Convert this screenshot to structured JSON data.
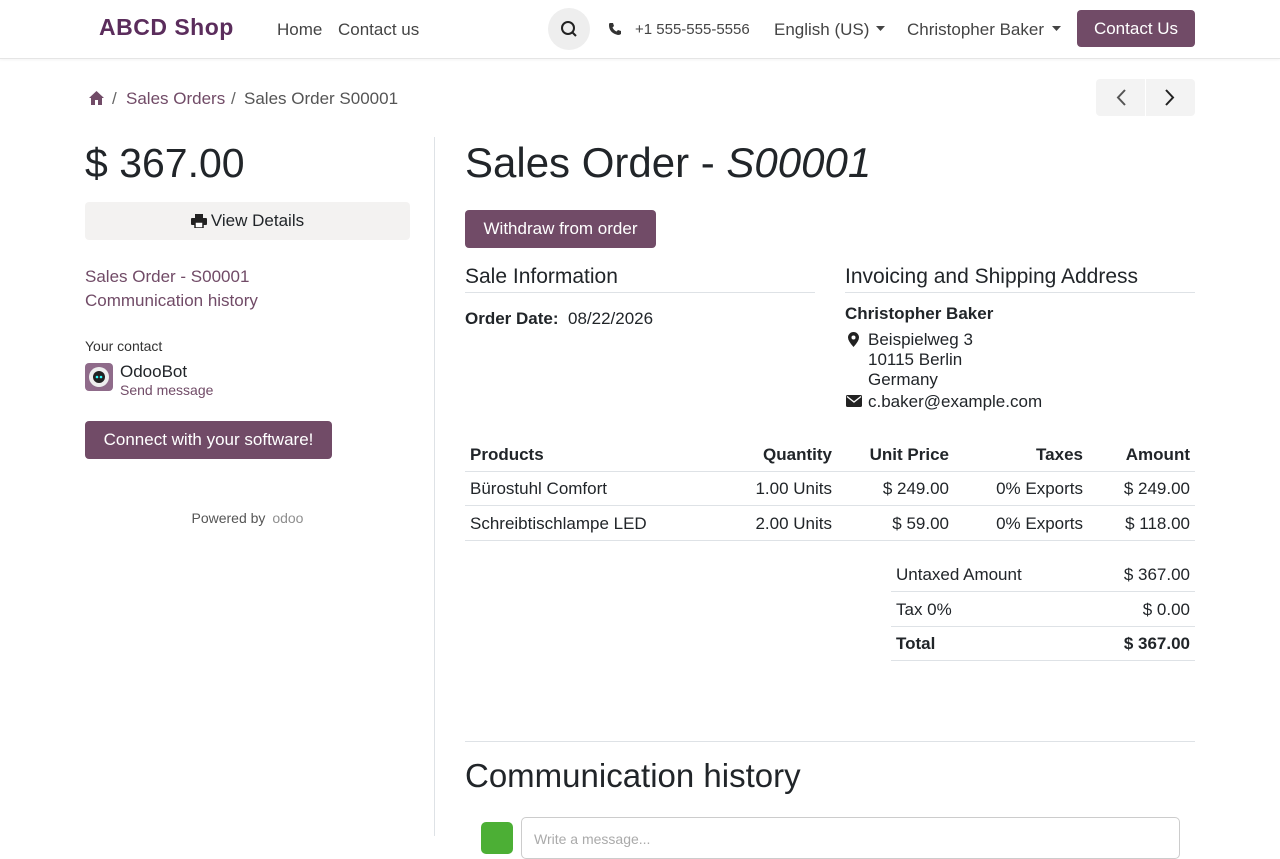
{
  "header": {
    "brand": "ABCD Shop",
    "nav": [
      "Home",
      "Contact us"
    ],
    "phone": "+1 555-555-5556",
    "language": "English (US)",
    "user": "Christopher Baker",
    "cta": "Contact Us"
  },
  "breadcrumb": [
    "Sales Orders",
    "Sales Order S00001"
  ],
  "sidebar": {
    "amount": "$ 367.00",
    "view_details": "View Details",
    "links": [
      "Sales Order - S00001",
      "Communication history"
    ],
    "contact_label": "Your contact",
    "contact_name": "OdooBot",
    "send_message": "Send message",
    "connect": "Connect with your software!",
    "powered_by": "Powered by",
    "powered_brand": "odoo"
  },
  "main": {
    "title": "Sales Order -",
    "order_ref": "S00001",
    "withdraw": "Withdraw from order",
    "sale_info": "Sale Information",
    "order_date_label": "Order Date:",
    "order_date": "08/22/2026",
    "address_title": "Invoicing and Shipping Address",
    "customer": "Christopher Baker",
    "address": [
      "Beispielweg 3",
      "10115 Berlin",
      "Germany"
    ],
    "email": "c.baker@example.com",
    "table": {
      "columns": [
        "Products",
        "Quantity",
        "Unit Price",
        "Taxes",
        "Amount"
      ],
      "rows": [
        [
          "Bürostuhl Comfort",
          "1.00 Units",
          "$ 249.00",
          "0% Exports",
          "$ 249.00"
        ],
        [
          "Schreibtischlampe LED",
          "2.00 Units",
          "$ 59.00",
          "0% Exports",
          "$ 118.00"
        ]
      ]
    },
    "totals": [
      [
        "Untaxed Amount",
        "$ 367.00"
      ],
      [
        "Tax 0%",
        "$ 0.00"
      ],
      [
        "Total",
        "$ 367.00"
      ]
    ],
    "history_title": "Communication history",
    "message_placeholder": "Write a message..."
  }
}
